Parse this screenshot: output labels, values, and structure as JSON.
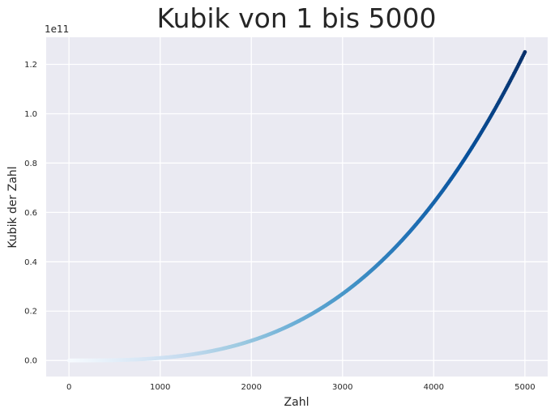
{
  "chart_data": {
    "type": "scatter",
    "title": "Kubik von 1 bis 5000",
    "xlabel": "Zahl",
    "ylabel": "Kubik der Zahl",
    "y_offset_label": "1e11",
    "xlim": [
      -250,
      5250
    ],
    "ylim": [
      -0.065,
      1.31
    ],
    "x_ticks": [
      {
        "value": 0,
        "label": "0"
      },
      {
        "value": 1000,
        "label": "1000"
      },
      {
        "value": 2000,
        "label": "2000"
      },
      {
        "value": 3000,
        "label": "3000"
      },
      {
        "value": 4000,
        "label": "4000"
      },
      {
        "value": 5000,
        "label": "5000"
      }
    ],
    "y_ticks": [
      {
        "value": 0.0,
        "label": "0.0"
      },
      {
        "value": 0.2,
        "label": "0.2"
      },
      {
        "value": 0.4,
        "label": "0.4"
      },
      {
        "value": 0.6,
        "label": "0.6"
      },
      {
        "value": 0.8,
        "label": "0.8"
      },
      {
        "value": 1.0,
        "label": "1.0"
      },
      {
        "value": 1.2,
        "label": "1.2"
      }
    ],
    "series": [
      {
        "x_start": 1,
        "x_end": 5000,
        "y_function": "x^3",
        "y_units": "1e11",
        "colormap": "Blues"
      }
    ],
    "grid": true,
    "legend": "none"
  },
  "colors": {
    "axes_background": "#eaeaf2",
    "grid": "#ffffff",
    "text": "#262626",
    "colormap_start": "#f7fbff",
    "colormap_mid": "#6baed6",
    "colormap_end": "#08306b"
  }
}
